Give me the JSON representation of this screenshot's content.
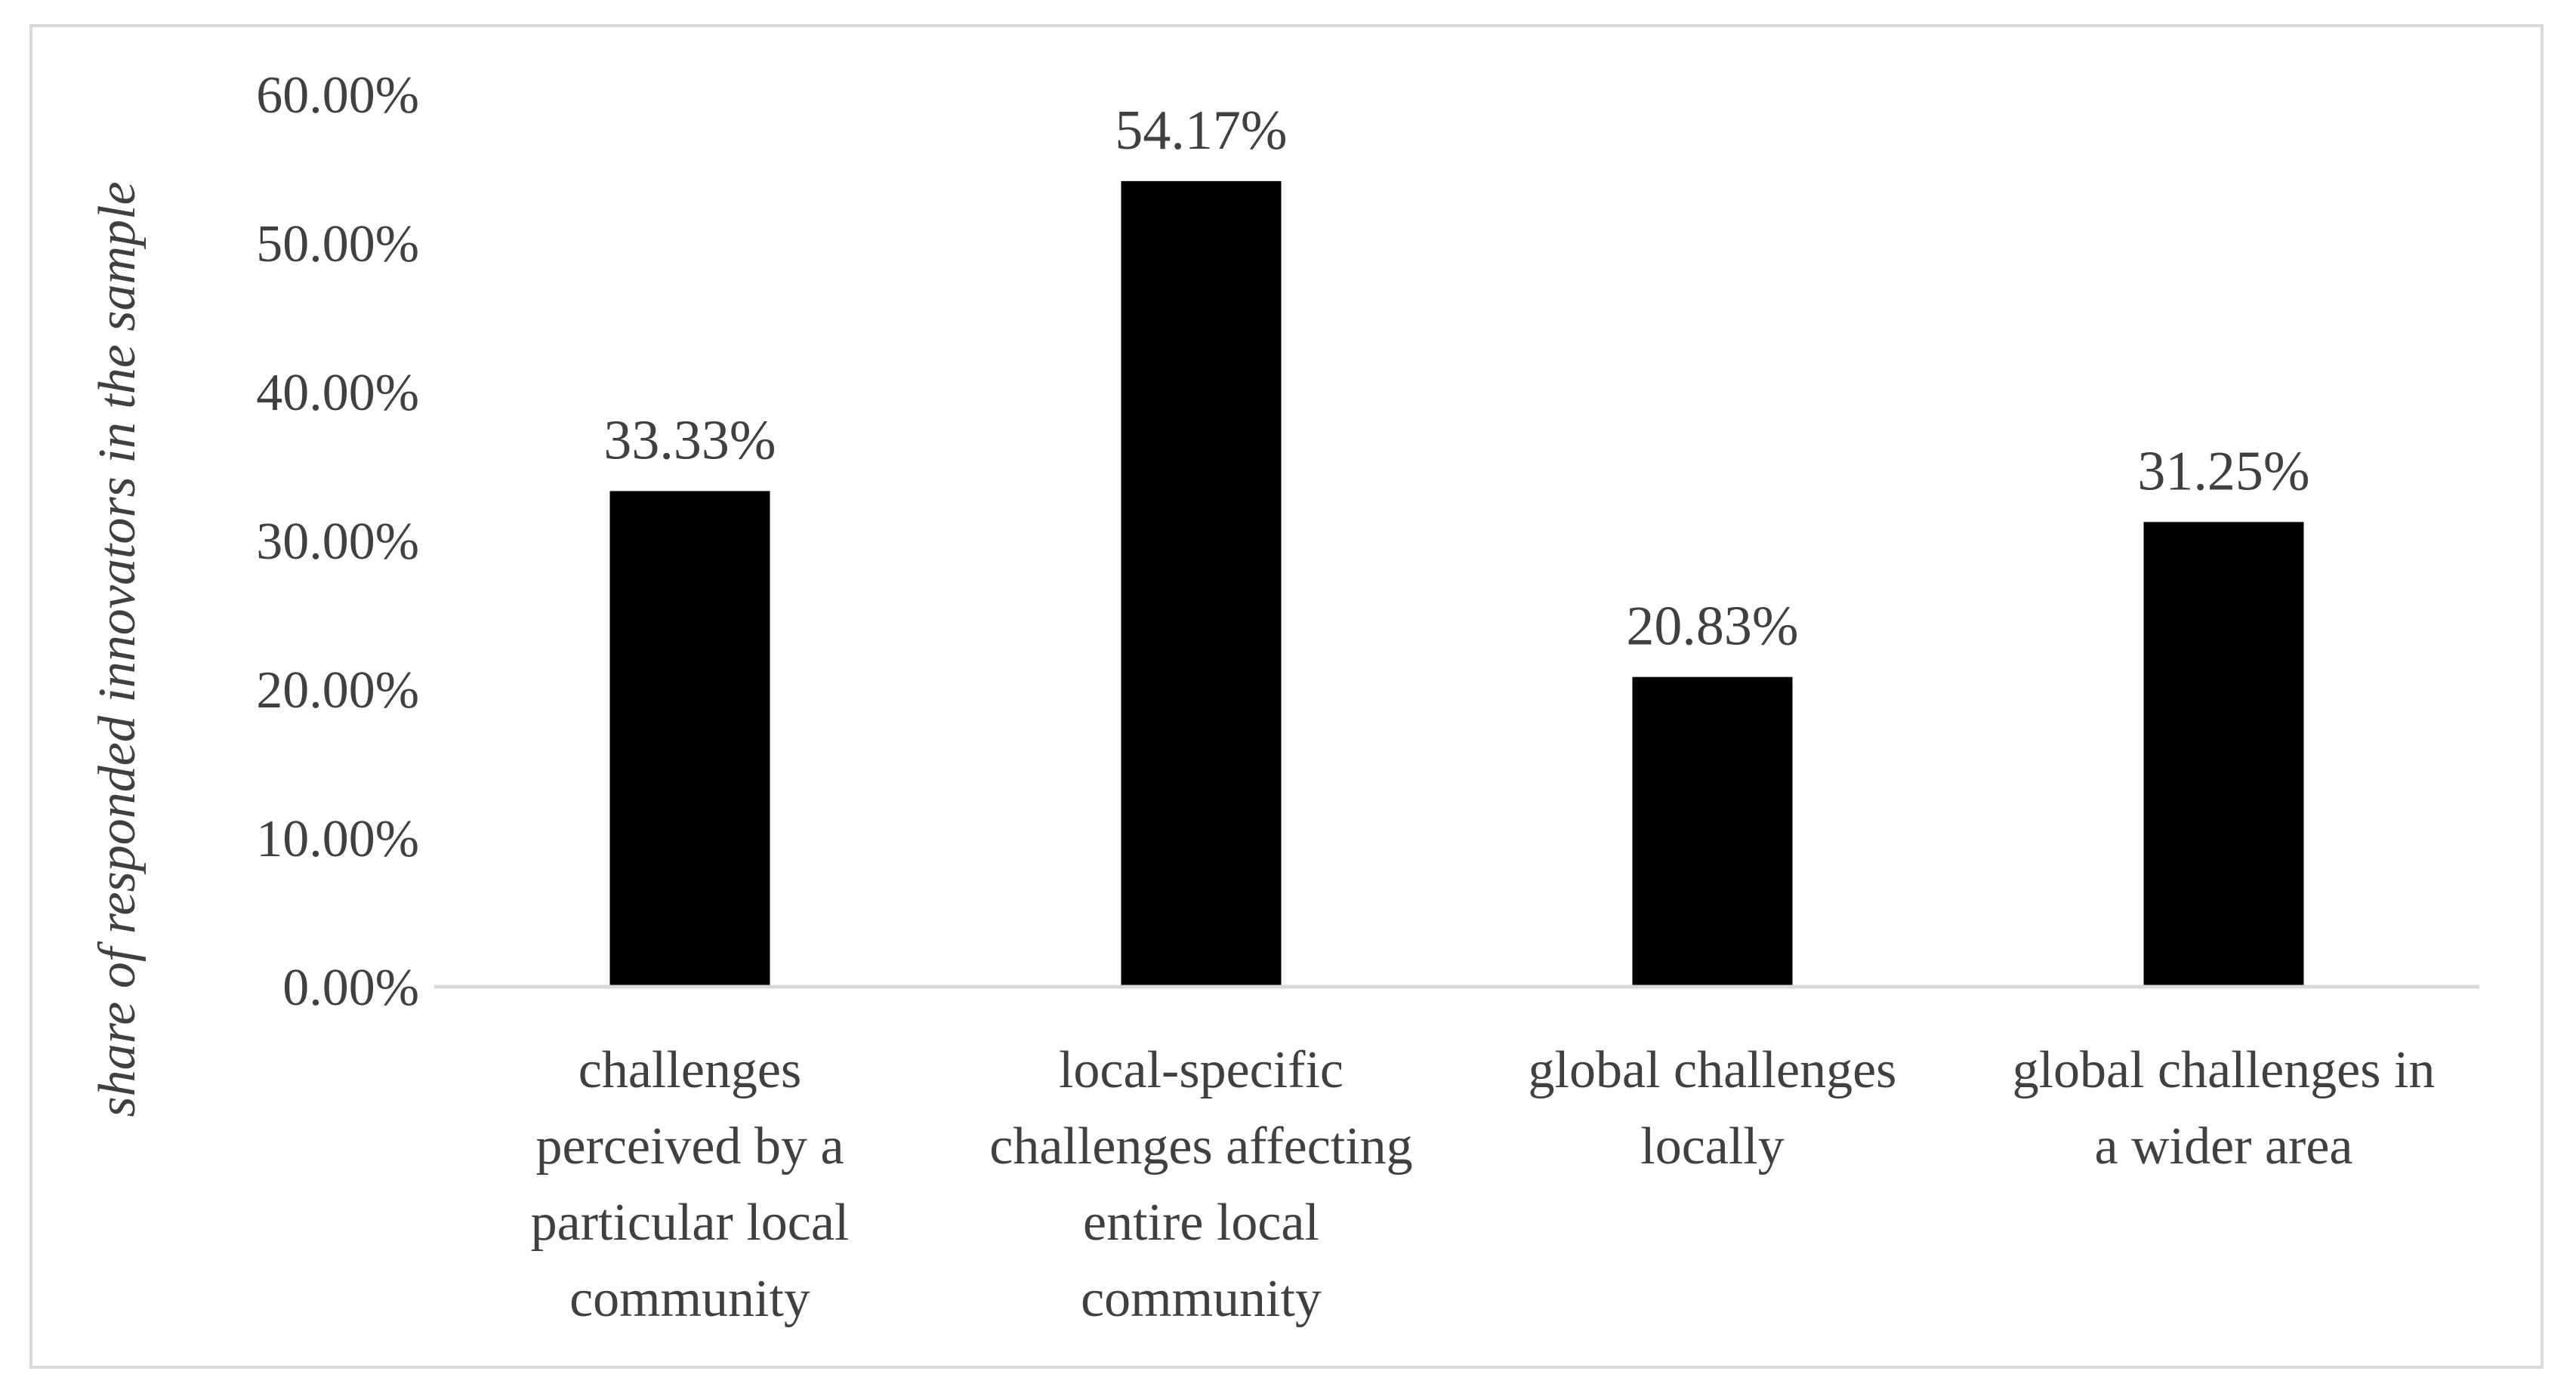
{
  "chart_data": {
    "type": "bar",
    "title": "",
    "xlabel": "",
    "ylabel": "share of responded innovators in the sample",
    "ylim": [
      0,
      60
    ],
    "yticks": [
      0,
      10,
      20,
      30,
      40,
      50,
      60
    ],
    "ytick_labels": [
      "0.00%",
      "10.00%",
      "20.00%",
      "30.00%",
      "40.00%",
      "50.00%",
      "60.00%"
    ],
    "categories": [
      [
        "challenges",
        "perceived by a",
        "particular local",
        "community"
      ],
      [
        "local-specific",
        "challenges affecting",
        "entire local",
        "community"
      ],
      [
        "global challenges",
        "locally"
      ],
      [
        "global challenges in",
        "a wider area"
      ]
    ],
    "values": [
      33.33,
      54.17,
      20.83,
      31.25
    ],
    "data_labels": [
      "33.33%",
      "54.17%",
      "20.83%",
      "31.25%"
    ],
    "grid": false,
    "legend": "none",
    "bar_color": "#000000",
    "axis_color": "#d9d9d9",
    "text_color": "#404040"
  }
}
